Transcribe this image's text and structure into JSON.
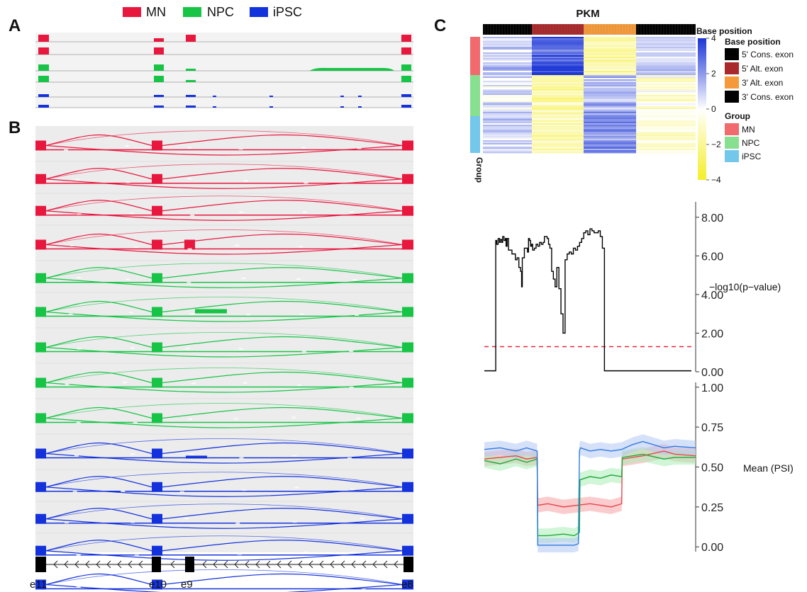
{
  "panels": {
    "a": "A",
    "b": "B",
    "c": "C"
  },
  "legend": [
    {
      "label": "MN",
      "color": "#e8173e"
    },
    {
      "label": "NPC",
      "color": "#17c446"
    },
    {
      "label": "iPSC",
      "color": "#1432dc"
    }
  ],
  "exons": [
    "e11",
    "e10",
    "e9",
    "e8"
  ],
  "heatmap": {
    "title": "PKM",
    "row_annotation_label": "Group",
    "colorbar_ticks": [
      "4",
      "2",
      "0",
      "−2",
      "−4"
    ],
    "col_annot_title": "Base position",
    "col_legend_title": "Base position",
    "col_legend": [
      {
        "label": "5' Cons. exon",
        "color": "#000000"
      },
      {
        "label": "5' Alt. exon",
        "color": "#a8282b"
      },
      {
        "label": "3' Alt. exon",
        "color": "#f59a3a"
      },
      {
        "label": "3' Cons. exon",
        "color": "#000000"
      }
    ],
    "group_legend_title": "Group",
    "group_legend": [
      {
        "label": "MN",
        "color": "#f06a6e"
      },
      {
        "label": "NPC",
        "color": "#86e08f"
      },
      {
        "label": "iPSC",
        "color": "#72c7ea"
      }
    ]
  },
  "chart_data": [
    {
      "type": "line",
      "ylabel": "−log10(p−value)",
      "ylim": [
        0,
        8.8
      ],
      "yticks": [
        "8.00",
        "6.00",
        "4.00",
        "2.00",
        "0.00"
      ],
      "threshold": 1.3,
      "x": [
        0,
        25,
        28,
        30,
        33,
        36,
        40,
        44,
        46,
        50,
        53,
        57,
        61,
        63,
        66,
        70,
        75,
        80,
        85,
        90,
        95,
        100,
        105,
        108,
        110,
        113,
        116,
        120,
        125,
        128,
        131,
        134,
        137,
        140,
        145,
        150,
        155,
        160,
        165,
        170,
        174,
        178,
        182,
        186,
        190,
        195,
        200,
        205,
        210,
        216,
        222,
        228,
        234,
        240,
        246,
        252,
        258,
        264,
        270,
        276,
        282,
        288,
        294,
        300,
        306,
        312,
        318,
        324,
        330,
        336,
        342,
        348,
        354,
        360,
        366,
        372,
        378,
        384,
        390,
        396,
        402,
        408,
        414,
        420,
        426,
        430,
        436,
        440,
        446,
        452,
        458,
        464,
        470,
        476,
        482,
        488,
        494,
        500,
        506,
        512,
        520,
        530,
        540,
        550,
        560,
        580,
        600
      ],
      "values": [
        0.05,
        0.05,
        0.05,
        0.05,
        6.8,
        6.6,
        6.9,
        6.7,
        6.85,
        6.7,
        7.0,
        6.8,
        6.9,
        6.5,
        6.9,
        6.3,
        6.3,
        6.1,
        6.1,
        5.8,
        5.9,
        5.4,
        5.2,
        4.4,
        5.9,
        5.9,
        6.4,
        6.4,
        6.2,
        6.9,
        6.8,
        6.5,
        6.6,
        6.3,
        6.4,
        6.6,
        6.5,
        6.7,
        6.6,
        6.7,
        7.0,
        7.0,
        6.9,
        6.6,
        6.4,
        5.2,
        4.8,
        4.4,
        5.4,
        4.3,
        3.0,
        2.0,
        5.8,
        6.1,
        6.2,
        6.1,
        6.4,
        6.3,
        6.5,
        6.7,
        6.9,
        7.2,
        7.3,
        7.1,
        7.4,
        7.3,
        7.2,
        7.2,
        7.3,
        7.0,
        6.4,
        0.05,
        0.05,
        0.05,
        0.05,
        0.05,
        0.05,
        0.05,
        0.05,
        0.05,
        0.05,
        0.05,
        0.05,
        0.05,
        0.05,
        0.05,
        0.05,
        0.05,
        0.05,
        0.05,
        0.05,
        0.05,
        0.05,
        0.05,
        0.05,
        0.05,
        0.05,
        0.05,
        0.05,
        0.05,
        0.05,
        0.05,
        0.05,
        0.05,
        0.05,
        0.05,
        0.05
      ]
    },
    {
      "type": "line",
      "ylabel": "Mean (PSI)",
      "ylim": [
        -0.03,
        1.03
      ],
      "yticks": [
        "1.00",
        "0.75",
        "0.50",
        "0.25",
        "0.00"
      ],
      "series": [
        {
          "name": "MN",
          "color": "#e8454a",
          "x": [
            0,
            30,
            60,
            80,
            100,
            101,
            120,
            150,
            200,
            220,
            240,
            260,
            261,
            300,
            340,
            360,
            400
          ],
          "values": [
            0.55,
            0.56,
            0.57,
            0.55,
            0.56,
            0.26,
            0.27,
            0.25,
            0.27,
            0.26,
            0.25,
            0.27,
            0.55,
            0.57,
            0.6,
            0.58,
            0.57
          ]
        },
        {
          "name": "NPC",
          "color": "#1fa83a",
          "x": [
            0,
            30,
            60,
            80,
            100,
            101,
            120,
            150,
            170,
            180,
            181,
            200,
            220,
            240,
            260,
            261,
            300,
            340,
            360,
            400
          ],
          "values": [
            0.54,
            0.52,
            0.55,
            0.53,
            0.55,
            0.07,
            0.07,
            0.08,
            0.07,
            0.09,
            0.42,
            0.44,
            0.43,
            0.45,
            0.44,
            0.56,
            0.58,
            0.55,
            0.56,
            0.56
          ]
        },
        {
          "name": "iPSC",
          "color": "#2f7be0",
          "x": [
            0,
            30,
            60,
            80,
            100,
            101,
            120,
            150,
            170,
            178,
            180,
            182,
            200,
            220,
            240,
            260,
            280,
            300,
            340,
            360,
            400
          ],
          "values": [
            0.61,
            0.62,
            0.6,
            0.62,
            0.6,
            0.01,
            0.01,
            0.01,
            0.01,
            0.02,
            0.6,
            0.62,
            0.6,
            0.61,
            0.6,
            0.61,
            0.64,
            0.66,
            0.62,
            0.63,
            0.62
          ]
        }
      ]
    }
  ]
}
